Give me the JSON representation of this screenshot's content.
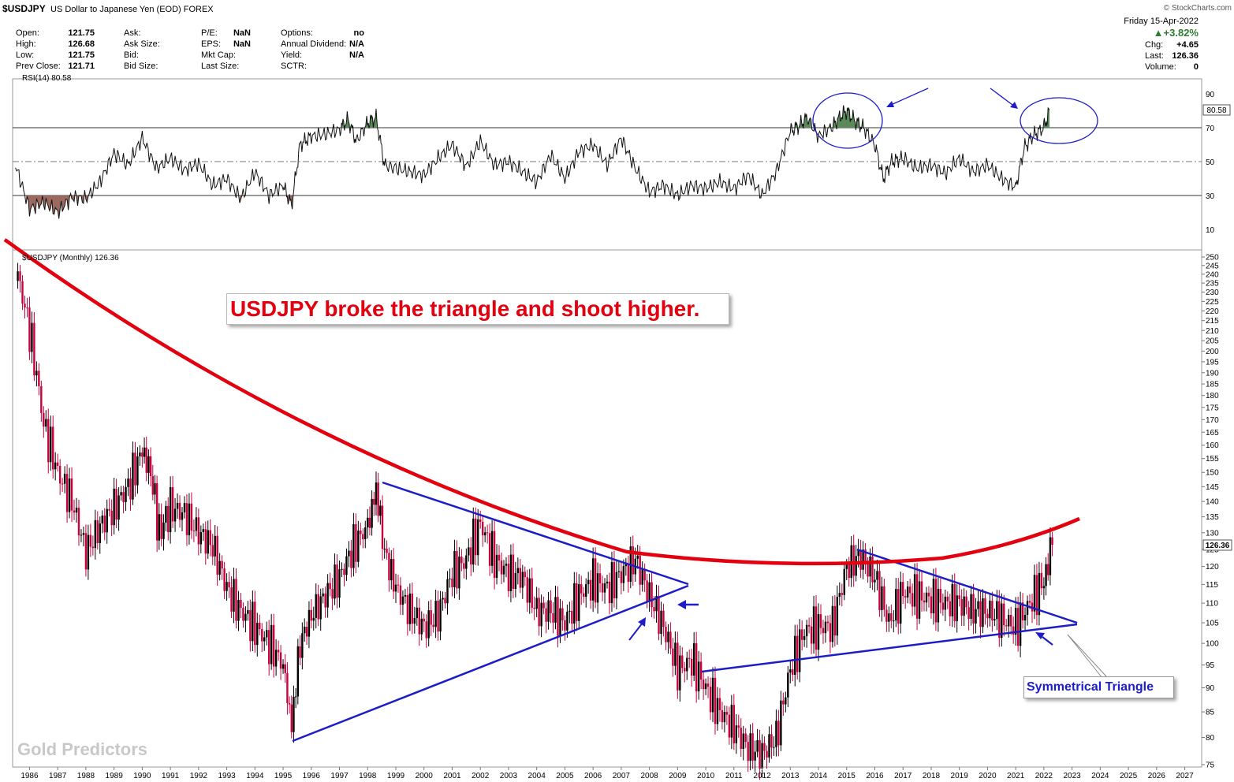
{
  "header": {
    "symbol": "$USDJPY",
    "description": "US Dollar to Japanese Yen (EOD) FOREX",
    "provider": "© StockCharts.com",
    "date": "Friday 15-Apr-2022",
    "pct_change": "▲+3.82%",
    "chg_label": "Chg:",
    "chg_value": "+4.65",
    "last_label": "Last:",
    "last_value": "126.36",
    "volume_label": "Volume:",
    "volume_value": "0",
    "rows": [
      [
        {
          "k": "Open:",
          "v": "121.75"
        },
        {
          "k": "Ask:",
          "v": ""
        },
        {
          "k": "P/E:",
          "v": "NaN"
        },
        {
          "k": "Options:",
          "v": "no"
        }
      ],
      [
        {
          "k": "High:",
          "v": "126.68"
        },
        {
          "k": "Ask Size:",
          "v": ""
        },
        {
          "k": "EPS:",
          "v": "NaN"
        },
        {
          "k": "Annual Dividend:",
          "v": "N/A"
        }
      ],
      [
        {
          "k": "Low:",
          "v": "121.75"
        },
        {
          "k": "Bid:",
          "v": ""
        },
        {
          "k": "Mkt Cap:",
          "v": ""
        },
        {
          "k": "Yield:",
          "v": "N/A"
        }
      ],
      [
        {
          "k": "Prev Close:",
          "v": "121.71"
        },
        {
          "k": "Bid Size:",
          "v": ""
        },
        {
          "k": "Last Size:",
          "v": ""
        },
        {
          "k": "SCTR:",
          "v": ""
        }
      ]
    ]
  },
  "rsi_label": "RSI(14) 80.58",
  "rsi_value_tag": "80.58",
  "price_label": "$USDJPY (Monthly) 126.36",
  "price_value_tag": "126.36",
  "callout_text": "USDJPY broke the triangle and shoot higher.",
  "triangle_label": "Symmetrical Triangle",
  "watermark": "Gold Predictors",
  "colors": {
    "down": "#c8003c",
    "up": "#000000",
    "curve": "#e3000f",
    "trend": "#1d1dc8",
    "rsi_green": "#5a8a5a",
    "rsi_brown": "#9a6a60"
  },
  "chart_data": [
    {
      "type": "line",
      "series": [
        {
          "name": "RSI(14)",
          "x": [
            1985.5,
            1986,
            1986.5,
            1987,
            1987.5,
            1988,
            1988.5,
            1989,
            1989.5,
            1990,
            1990.5,
            1991,
            1991.5,
            1992,
            1992.5,
            1993,
            1993.5,
            1994,
            1994.5,
            1995,
            1995.3,
            1995.6,
            1996,
            1996.5,
            1997,
            1997.3,
            1997.6,
            1998,
            1998.3,
            1998.6,
            1999,
            1999.5,
            2000,
            2000.5,
            2001,
            2001.5,
            2002,
            2002.5,
            2003,
            2003.5,
            2004,
            2004.5,
            2005,
            2005.5,
            2006,
            2006.5,
            2007,
            2007.5,
            2008,
            2008.5,
            2009,
            2009.5,
            2010,
            2010.5,
            2011,
            2011.5,
            2012,
            2012.5,
            2013,
            2013.3,
            2013.6,
            2014,
            2014.5,
            2014.8,
            2015,
            2015.3,
            2015.6,
            2016,
            2016.3,
            2016.6,
            2017,
            2017.5,
            2018,
            2018.5,
            2019,
            2019.5,
            2020,
            2020.5,
            2021,
            2021.3,
            2021.6,
            2022,
            2022.2
          ],
          "values": [
            48,
            22,
            26,
            20,
            29,
            28,
            38,
            55,
            48,
            64,
            46,
            52,
            45,
            49,
            36,
            40,
            28,
            44,
            30,
            36,
            24,
            60,
            65,
            66,
            69,
            75,
            62,
            73,
            76,
            48,
            46,
            44,
            42,
            52,
            60,
            47,
            62,
            48,
            50,
            44,
            38,
            54,
            40,
            56,
            60,
            48,
            64,
            46,
            32,
            36,
            30,
            36,
            34,
            38,
            34,
            42,
            30,
            44,
            68,
            71,
            76,
            65,
            71,
            77,
            80,
            74,
            70,
            60,
            40,
            50,
            52,
            46,
            48,
            43,
            52,
            44,
            48,
            40,
            35,
            58,
            65,
            70,
            80.58
          ]
        }
      ],
      "y_ticks": [
        10,
        30,
        50,
        70,
        90
      ],
      "ylim": [
        0,
        100
      ],
      "reference_lines": [
        30,
        50,
        70
      ]
    },
    {
      "type": "candlestick",
      "title": "$USDJPY (Monthly) 126.36",
      "series": [
        {
          "name": "$USDJPY",
          "x": [
            1985.5,
            1986.0,
            1986.5,
            1987.0,
            1987.5,
            1988.0,
            1988.5,
            1989.0,
            1989.5,
            1990.0,
            1990.3,
            1990.6,
            1991.0,
            1991.5,
            1992.0,
            1992.5,
            1993.0,
            1993.5,
            1994.0,
            1994.5,
            1995.0,
            1995.3,
            1995.6,
            1996.0,
            1996.5,
            1997.0,
            1997.5,
            1998.0,
            1998.3,
            1998.6,
            1999.0,
            1999.5,
            2000.0,
            2000.5,
            2001.0,
            2001.5,
            2002.0,
            2002.5,
            2003.0,
            2003.5,
            2004.0,
            2004.5,
            2005.0,
            2005.5,
            2006.0,
            2006.5,
            2007.0,
            2007.5,
            2008.0,
            2008.5,
            2009.0,
            2009.5,
            2010.0,
            2010.5,
            2011.0,
            2011.5,
            2012.0,
            2012.5,
            2013.0,
            2013.5,
            2014.0,
            2014.5,
            2015.0,
            2015.5,
            2016.0,
            2016.5,
            2017.0,
            2017.5,
            2018.0,
            2018.5,
            2019.0,
            2019.5,
            2020.0,
            2020.5,
            2021.0,
            2021.5,
            2022.0,
            2022.3
          ],
          "values": [
            245,
            210,
            168,
            150,
            140,
            124,
            132,
            138,
            145,
            158,
            150,
            130,
            138,
            136,
            130,
            126,
            114,
            108,
            104,
            100,
            95,
            82,
            100,
            107,
            112,
            117,
            126,
            132,
            144,
            124,
            114,
            108,
            104,
            107,
            118,
            122,
            133,
            122,
            118,
            117,
            108,
            108,
            105,
            112,
            116,
            114,
            118,
            122,
            112,
            104,
            94,
            96,
            90,
            85,
            82,
            78,
            77,
            80,
            94,
            103,
            104,
            104,
            120,
            123,
            117,
            105,
            113,
            112,
            111,
            110,
            110,
            108,
            108,
            106,
            104,
            110,
            116,
            126.36
          ]
        }
      ],
      "y_ticks": [
        75,
        80,
        85,
        90,
        95,
        100,
        105,
        110,
        115,
        120,
        125,
        130,
        135,
        140,
        145,
        150,
        155,
        160,
        165,
        170,
        175,
        180,
        185,
        190,
        195,
        200,
        205,
        210,
        215,
        220,
        225,
        230,
        235,
        240,
        245,
        250
      ],
      "ylim": [
        75,
        250
      ],
      "x_ticks": [
        "1986",
        "1987",
        "1988",
        "1989",
        "1990",
        "1991",
        "1992",
        "1993",
        "1994",
        "1995",
        "1996",
        "1997",
        "1998",
        "1999",
        "2000",
        "2001",
        "2002",
        "2003",
        "2004",
        "2005",
        "2006",
        "2007",
        "2008",
        "2009",
        "2010",
        "2011",
        "2012",
        "2013",
        "2014",
        "2015",
        "2016",
        "2017",
        "2018",
        "2019",
        "2020",
        "2021",
        "2022",
        "2023",
        "2024",
        "2025",
        "2026",
        "2027"
      ],
      "xlim": [
        1985.4,
        2027.6
      ],
      "annotations": [
        "USDJPY broke the triangle and shoot higher.",
        "Symmetrical Triangle"
      ]
    }
  ]
}
